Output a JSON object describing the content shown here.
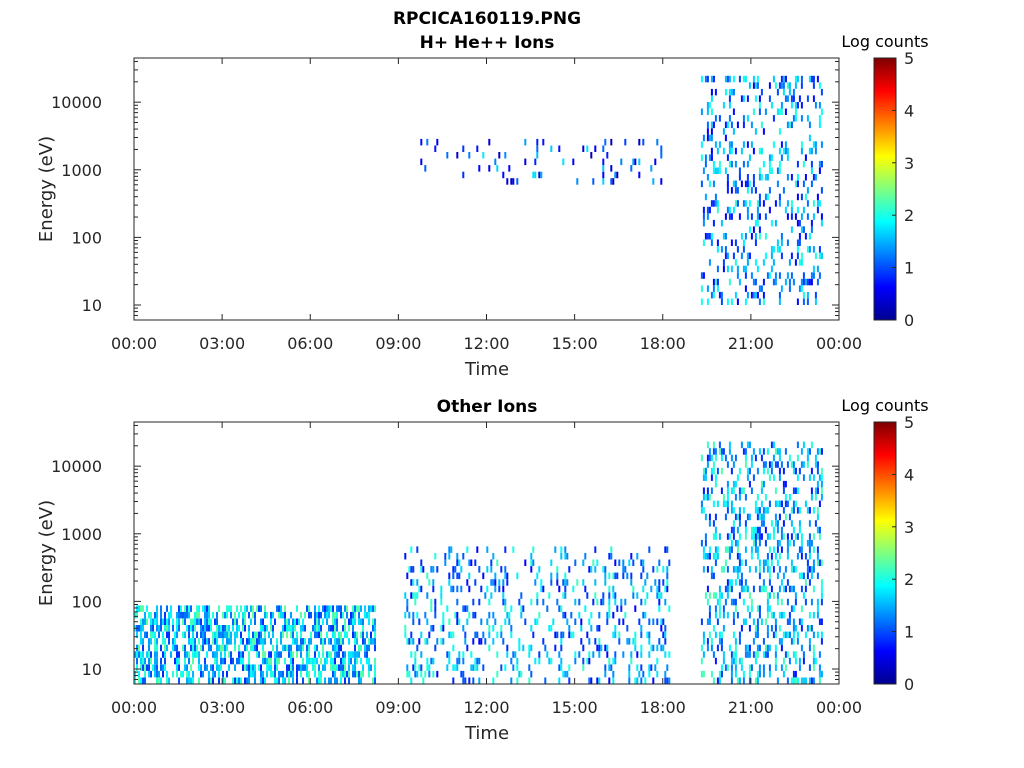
{
  "figure": {
    "title_line1": "RPCICA160119.PNG"
  },
  "colorbar": {
    "title": "Log counts",
    "ticks": [
      "0",
      "1",
      "2",
      "3",
      "4",
      "5"
    ],
    "range": [
      0,
      5
    ],
    "colormap": "jet",
    "colors": [
      "#00008f",
      "#0000ff",
      "#007fff",
      "#00ffff",
      "#7fff7f",
      "#ffff00",
      "#ff7f00",
      "#ff0000",
      "#7f0000"
    ]
  },
  "chart_data": [
    {
      "type": "heatmap",
      "title": "H+ He++ Ions",
      "xlabel": "Time",
      "ylabel": "Energy (eV)",
      "xticks": [
        "00:00",
        "03:00",
        "06:00",
        "09:00",
        "12:00",
        "15:00",
        "18:00",
        "21:00",
        "00:00"
      ],
      "xlim_hours": [
        0,
        24
      ],
      "yticks": [
        "10",
        "100",
        "1000",
        "10000"
      ],
      "ylim": [
        6,
        45000
      ],
      "yscale": "log",
      "grid": false,
      "activity": [
        {
          "start_hour": 9.2,
          "end_hour": 18.1,
          "emin": 600,
          "emax": 2500,
          "level": 1.0,
          "density": 0.08
        },
        {
          "start_hour": 19.3,
          "end_hour": 23.4,
          "emin": 10,
          "emax": 20000,
          "level": 1.3,
          "density": 0.22
        }
      ]
    },
    {
      "type": "heatmap",
      "title": "Other Ions",
      "xlabel": "Time",
      "ylabel": "Energy (eV)",
      "xticks": [
        "00:00",
        "03:00",
        "06:00",
        "09:00",
        "12:00",
        "15:00",
        "18:00",
        "21:00",
        "00:00"
      ],
      "xlim_hours": [
        0,
        24
      ],
      "yticks": [
        "10",
        "100",
        "1000",
        "10000"
      ],
      "ylim": [
        6,
        45000
      ],
      "yscale": "log",
      "grid": false,
      "activity": [
        {
          "start_hour": 0.0,
          "end_hour": 8.2,
          "emin": 6,
          "emax": 80,
          "level": 1.6,
          "density": 0.55
        },
        {
          "start_hour": 9.2,
          "end_hour": 18.2,
          "emin": 6,
          "emax": 600,
          "level": 1.4,
          "density": 0.2
        },
        {
          "start_hour": 19.3,
          "end_hour": 23.4,
          "emin": 6,
          "emax": 20000,
          "level": 1.5,
          "density": 0.3
        }
      ]
    }
  ]
}
